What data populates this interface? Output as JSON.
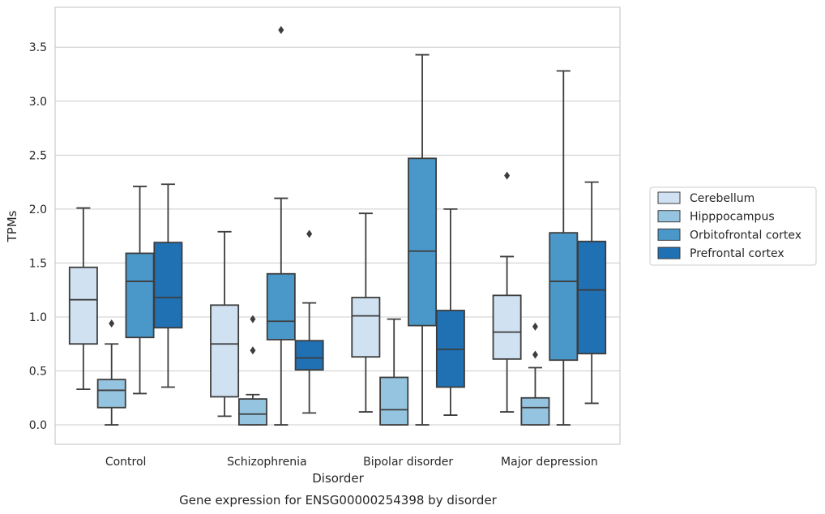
{
  "chart_data": {
    "type": "box",
    "title": "",
    "caption": "Gene expression for ENSG00000254398 by disorder",
    "xlabel": "Disorder",
    "ylabel": "TPMs",
    "ylim": [
      -0.18,
      3.87
    ],
    "yticks": [
      "0.0",
      "0.5",
      "1.0",
      "1.5",
      "2.0",
      "2.5",
      "3.0",
      "3.5"
    ],
    "categories": [
      "Control",
      "Schizophrenia",
      "Bipolar disorder",
      "Major depression"
    ],
    "grid": true,
    "legend_position": "right",
    "series": [
      {
        "name": "Cerebellum",
        "color": "#d0e1f2",
        "boxes": [
          {
            "q1": 0.75,
            "median": 1.16,
            "q3": 1.46,
            "whisker_low": 0.33,
            "whisker_high": 2.01,
            "outliers": []
          },
          {
            "q1": 0.26,
            "median": 0.75,
            "q3": 1.11,
            "whisker_low": 0.08,
            "whisker_high": 1.79,
            "outliers": []
          },
          {
            "q1": 0.63,
            "median": 1.01,
            "q3": 1.18,
            "whisker_low": 0.12,
            "whisker_high": 1.96,
            "outliers": []
          },
          {
            "q1": 0.61,
            "median": 0.86,
            "q3": 1.2,
            "whisker_low": 0.12,
            "whisker_high": 1.56,
            "outliers": [
              2.31
            ]
          }
        ]
      },
      {
        "name": "Hipppocampus",
        "color": "#94c4df",
        "boxes": [
          {
            "q1": 0.16,
            "median": 0.32,
            "q3": 0.42,
            "whisker_low": 0.0,
            "whisker_high": 0.75,
            "outliers": [
              0.94
            ]
          },
          {
            "q1": 0.0,
            "median": 0.1,
            "q3": 0.24,
            "whisker_low": 0.0,
            "whisker_high": 0.28,
            "outliers": [
              0.69,
              0.98
            ]
          },
          {
            "q1": 0.0,
            "median": 0.14,
            "q3": 0.44,
            "whisker_low": 0.0,
            "whisker_high": 0.98,
            "outliers": []
          },
          {
            "q1": 0.0,
            "median": 0.16,
            "q3": 0.25,
            "whisker_low": 0.0,
            "whisker_high": 0.53,
            "outliers": [
              0.65,
              0.91
            ]
          }
        ]
      },
      {
        "name": "Orbitofrontal cortex",
        "color": "#4a98c9",
        "boxes": [
          {
            "q1": 0.81,
            "median": 1.33,
            "q3": 1.59,
            "whisker_low": 0.29,
            "whisker_high": 2.21,
            "outliers": []
          },
          {
            "q1": 0.79,
            "median": 0.96,
            "q3": 1.4,
            "whisker_low": 0.0,
            "whisker_high": 2.1,
            "outliers": [
              3.66
            ]
          },
          {
            "q1": 0.92,
            "median": 1.61,
            "q3": 2.47,
            "whisker_low": 0.0,
            "whisker_high": 3.43,
            "outliers": []
          },
          {
            "q1": 0.6,
            "median": 1.33,
            "q3": 1.78,
            "whisker_low": 0.0,
            "whisker_high": 3.28,
            "outliers": []
          }
        ]
      },
      {
        "name": "Prefrontal cortex",
        "color": "#2070b4",
        "boxes": [
          {
            "q1": 0.9,
            "median": 1.18,
            "q3": 1.69,
            "whisker_low": 0.35,
            "whisker_high": 2.23,
            "outliers": []
          },
          {
            "q1": 0.51,
            "median": 0.62,
            "q3": 0.78,
            "whisker_low": 0.11,
            "whisker_high": 1.13,
            "outliers": [
              1.77
            ]
          },
          {
            "q1": 0.35,
            "median": 0.7,
            "q3": 1.06,
            "whisker_low": 0.09,
            "whisker_high": 2.0,
            "outliers": []
          },
          {
            "q1": 0.66,
            "median": 1.25,
            "q3": 1.7,
            "whisker_low": 0.2,
            "whisker_high": 2.25,
            "outliers": []
          }
        ]
      }
    ]
  }
}
